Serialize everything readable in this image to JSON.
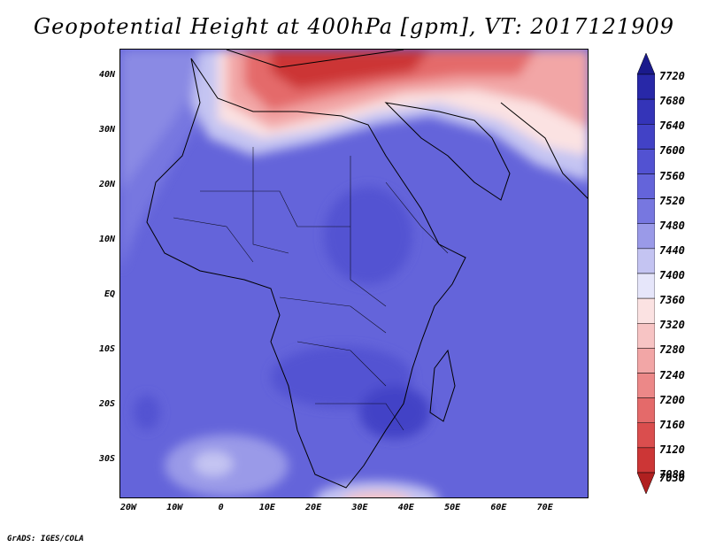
{
  "title": "Geopotential Height at 400hPa [gpm], VT: 2017121909",
  "footer": "GrADS: IGES/COLA",
  "map": {
    "lat_labels": [
      "40N",
      "30N",
      "20N",
      "10N",
      "EQ",
      "10S",
      "20S",
      "30S"
    ],
    "lon_labels": [
      "20W",
      "10W",
      "0",
      "10E",
      "20E",
      "30E",
      "40E",
      "50E",
      "60E",
      "70E"
    ]
  },
  "colorbar": {
    "labels": [
      "7720",
      "7680",
      "7640",
      "7600",
      "7560",
      "7520",
      "7480",
      "7440",
      "7400",
      "7360",
      "7320",
      "7280",
      "7240",
      "7200",
      "7160",
      "7120",
      "7080",
      "7030"
    ],
    "colors": [
      "#1a1a8c",
      "#2828a8",
      "#3434b8",
      "#4242c6",
      "#5252d2",
      "#6464da",
      "#7777e0",
      "#9a9ae8",
      "#c4c4f2",
      "#e6e6fa",
      "#fbe2e2",
      "#f7c4c4",
      "#f2a6a6",
      "#ec8888",
      "#e46a6a",
      "#da4e4e",
      "#cc3636",
      "#b02020"
    ]
  },
  "palette": {
    "background_field": "#6464da",
    "coastline": "#000000"
  }
}
